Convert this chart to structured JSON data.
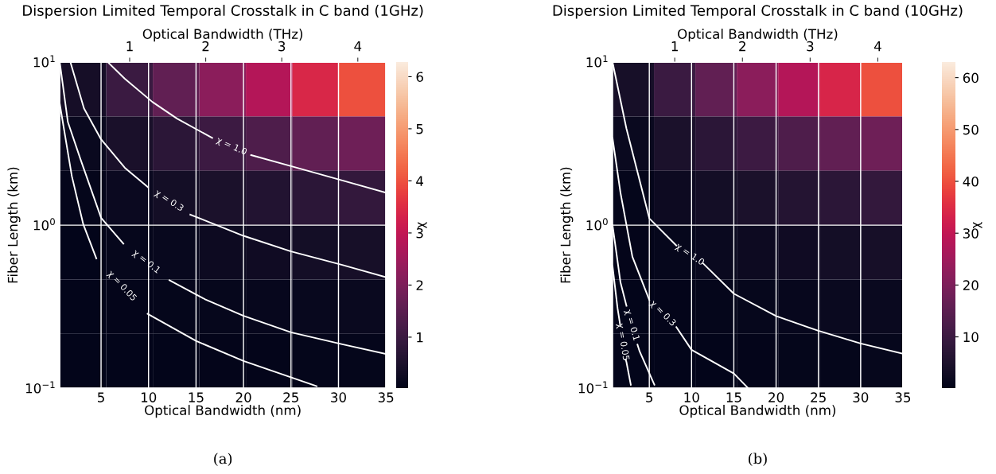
{
  "chart_data": [
    {
      "type": "heatmap",
      "title": "Dispersion Limited Temporal Crosstalk in C band (1GHz)",
      "xlabel": "Optical Bandwidth (nm)",
      "ylabel": "Fiber Length (km)",
      "x2label": "Optical Bandwidth (THz)",
      "clabel": "χ",
      "x": [
        3.1,
        8.0,
        12.9,
        17.8,
        22.7,
        27.6,
        32.5
      ],
      "y": [
        6.81,
        3.16,
        1.47,
        0.681,
        0.316,
        0.147
      ],
      "cells": [
        [
          0.38,
          0.98,
          1.6,
          2.2,
          2.8,
          3.4,
          4.0
        ],
        [
          0.18,
          0.46,
          0.73,
          1.0,
          1.3,
          1.6,
          1.8
        ],
        [
          0.08,
          0.21,
          0.34,
          0.47,
          0.6,
          0.73,
          0.86
        ],
        [
          0.04,
          0.1,
          0.16,
          0.22,
          0.28,
          0.34,
          0.4
        ],
        [
          0.02,
          0.05,
          0.07,
          0.1,
          0.13,
          0.16,
          0.18
        ],
        [
          0.01,
          0.02,
          0.03,
          0.05,
          0.06,
          0.07,
          0.09
        ]
      ],
      "clim": [
        0.02,
        6.28
      ],
      "cticks": [
        1,
        2,
        3,
        4,
        5,
        6
      ],
      "xlim": [
        0.65,
        35
      ],
      "xticks": [
        5,
        10,
        15,
        20,
        25,
        30,
        35
      ],
      "x2lim": [
        0.081,
        4.37
      ],
      "x2ticks": [
        1,
        2,
        3,
        4
      ],
      "ylim": [
        0.1,
        10
      ],
      "yticks": [
        {
          "value": 0.1,
          "label": "10$^{−1}$"
        },
        {
          "value": 1,
          "label": "10$^{0}$"
        },
        {
          "value": 10,
          "label": "10$^{1}$"
        }
      ],
      "log": "y",
      "grid": true,
      "series": [
        {
          "type": "line",
          "name": "χ = 1.0",
          "color": "#ffffff",
          "x": [
            5.7,
            7.5,
            10.4,
            13,
            16.7,
            18.7,
            20.8,
            25,
            30.4,
            35
          ],
          "values": [
            10,
            7.9,
            5.7,
            4.5,
            3.43,
            null,
            2.69,
            2.3,
            1.88,
            1.58
          ]
        },
        {
          "type": "line",
          "name": "χ = 0.3",
          "color": "#ffffff",
          "x": [
            1.77,
            3.2,
            5,
            7.5,
            9.93,
            12.05,
            14.4,
            20,
            25,
            30.4,
            35
          ],
          "values": [
            10,
            5.2,
            3.36,
            2.25,
            1.71,
            null,
            1.16,
            0.86,
            0.69,
            0.57,
            0.48
          ]
        },
        {
          "type": "line",
          "name": "χ = 0.1",
          "color": "#ffffff",
          "x": [
            0.65,
            1.5,
            2.83,
            5,
            7.35,
            9.8,
            12.2,
            16,
            20,
            25,
            30.4,
            35
          ],
          "values": [
            10,
            4.3,
            2.54,
            1.11,
            0.77,
            null,
            0.46,
            0.35,
            0.278,
            0.22,
            0.186,
            0.162
          ]
        },
        {
          "type": "line",
          "name": "χ = 0.05",
          "color": "#ffffff",
          "x": [
            0.65,
            1.92,
            3.13,
            4.5,
            7.2,
            9.9,
            15,
            20,
            27.7
          ],
          "values": [
            5.55,
            2.0,
            1.01,
            0.625,
            null,
            0.286,
            0.195,
            0.147,
            0.103
          ]
        }
      ],
      "annotations": [
        "(a)"
      ]
    },
    {
      "type": "heatmap",
      "title": "Dispersion Limited Temporal Crosstalk in C band (10GHz)",
      "xlabel": "Optical Bandwidth (nm)",
      "ylabel": "Fiber Length (km)",
      "x2label": "Optical Bandwidth (THz)",
      "clabel": "χ",
      "x": [
        3.1,
        8.0,
        12.9,
        17.8,
        22.7,
        27.6,
        32.5
      ],
      "y": [
        6.81,
        3.16,
        1.47,
        0.681,
        0.316,
        0.147
      ],
      "cells": [
        [
          3.8,
          9.8,
          16,
          22,
          28,
          34,
          40
        ],
        [
          1.8,
          4.6,
          7.3,
          10,
          13,
          16,
          18
        ],
        [
          0.8,
          2.1,
          3.4,
          4.7,
          6.0,
          7.3,
          8.6
        ],
        [
          0.4,
          1.0,
          1.6,
          2.2,
          2.8,
          3.4,
          4.0
        ],
        [
          0.2,
          0.5,
          0.7,
          1.0,
          1.3,
          1.6,
          1.8
        ],
        [
          0.1,
          0.2,
          0.3,
          0.5,
          0.6,
          0.7,
          0.9
        ]
      ],
      "clim": [
        0.1,
        63
      ],
      "cticks": [
        10,
        20,
        30,
        40,
        50,
        60
      ],
      "xlim": [
        0.65,
        35
      ],
      "xticks": [
        5,
        10,
        15,
        20,
        25,
        30,
        35
      ],
      "x2lim": [
        0.081,
        4.37
      ],
      "x2ticks": [
        1,
        2,
        3,
        4
      ],
      "ylim": [
        0.1,
        10
      ],
      "yticks": [
        {
          "value": 0.1,
          "label": "10$^{−1}$"
        },
        {
          "value": 1,
          "label": "10$^{0}$"
        },
        {
          "value": 10,
          "label": "10$^{1}$"
        }
      ],
      "log": "y",
      "grid": true,
      "series": [
        {
          "type": "line",
          "name": "χ = 1.0",
          "color": "#ffffff",
          "x": [
            0.65,
            2.29,
            5,
            8.2,
            9.8,
            11.4,
            15,
            20,
            25,
            30,
            35
          ],
          "values": [
            10,
            3.92,
            1.1,
            0.75,
            null,
            0.58,
            0.38,
            0.277,
            0.225,
            0.188,
            0.163
          ]
        },
        {
          "type": "line",
          "name": "χ = 0.3",
          "color": "#ffffff",
          "x": [
            0.65,
            1.59,
            3.0,
            5,
            6.8,
            8.2,
            10,
            15,
            16.7
          ],
          "values": [
            3.42,
            1.58,
            0.64,
            0.348,
            null,
            0.237,
            0.172,
            0.123,
            0.1
          ]
        },
        {
          "type": "line",
          "name": "χ = 0.1",
          "color": "#ffffff",
          "x": [
            0.65,
            1.59,
            2.3,
            2.95,
            3.6,
            3.86,
            5.6
          ],
          "values": [
            1.0,
            0.446,
            0.32,
            null,
            0.185,
            0.168,
            0.105
          ]
        },
        {
          "type": "line",
          "name": "χ = 0.05",
          "color": "#ffffff",
          "x": [
            0.65,
            1.24,
            1.55,
            1.87,
            2.2,
            2.29,
            2.81
          ],
          "values": [
            0.56,
            0.31,
            0.245,
            null,
            0.15,
            0.145,
            0.105
          ]
        }
      ],
      "annotations": [
        "(b)"
      ]
    }
  ]
}
